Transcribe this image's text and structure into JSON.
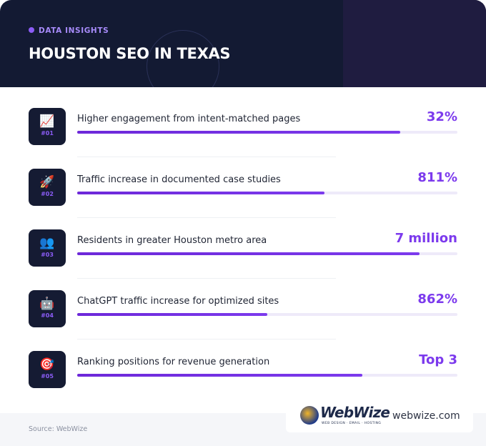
{
  "header": {
    "eyebrow": "DATA INSIGHTS",
    "title": "HOUSTON SEO IN TEXAS"
  },
  "items": [
    {
      "icon": "📈",
      "number": "#01",
      "label": "Higher engagement from intent-matched pages",
      "value": "32%"
    },
    {
      "icon": "🚀",
      "number": "#02",
      "label": "Traffic increase in documented case studies",
      "value": "811%"
    },
    {
      "icon": "👥",
      "number": "#03",
      "label": "Residents in greater Houston metro area",
      "value": "7 million"
    },
    {
      "icon": "🤖",
      "number": "#04",
      "label": "ChatGPT traffic increase for optimized sites",
      "value": "862%"
    },
    {
      "icon": "🎯",
      "number": "#05",
      "label": "Ranking positions for revenue generation",
      "value": "Top 3"
    }
  ],
  "footer": {
    "source": "Source: WebWize",
    "logo": {
      "name": "WebWize",
      "tagline": "WEB DESIGN · EMAIL · HOSTING"
    },
    "url": "webwize.com"
  }
}
